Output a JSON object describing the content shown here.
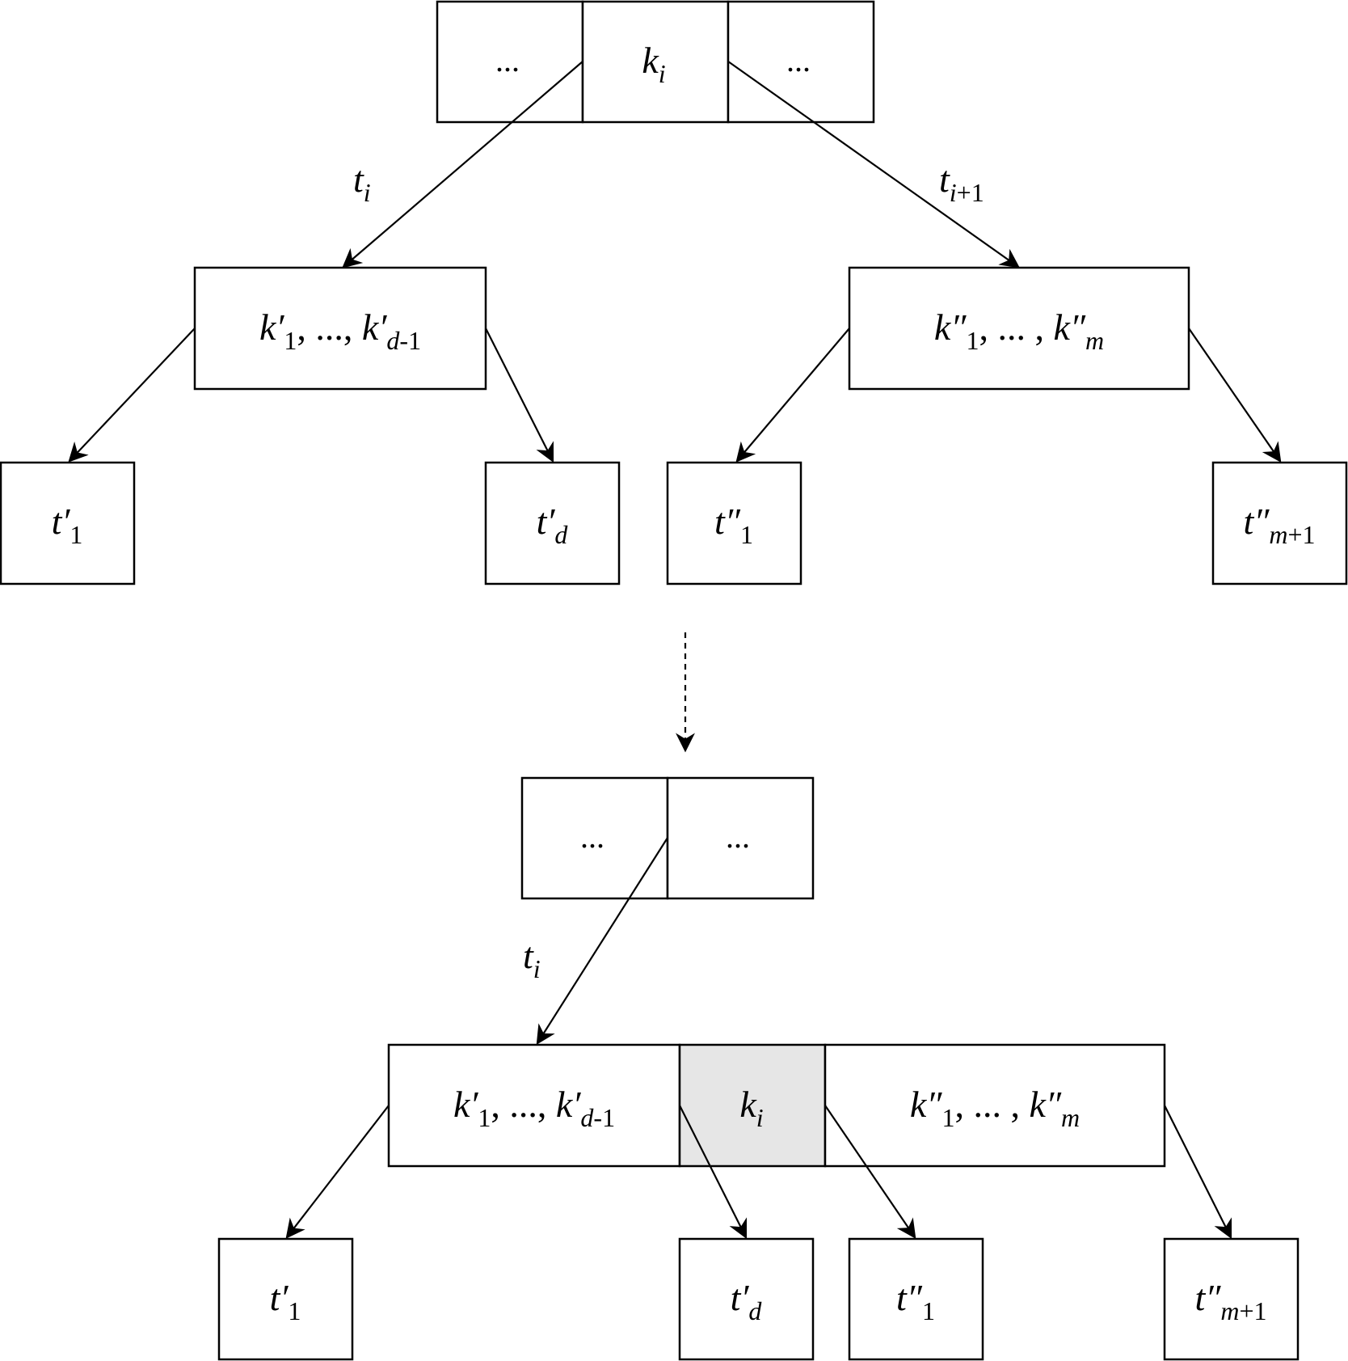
{
  "top": {
    "root": [
      "...",
      "k_i",
      "..."
    ],
    "left_node": "k'1, ..., k'd-1",
    "right_node": "k''1, ... , k''m",
    "leaves": [
      "t'1",
      "t'd",
      "t''1",
      "t''m+1"
    ],
    "edge_left": "t_i",
    "edge_right": "t_i+1"
  },
  "bottom": {
    "root": [
      "...",
      "..."
    ],
    "merged_node": [
      "k'1, ..., k'd-1",
      "k_i",
      "k''1, ... , k''m"
    ],
    "highlight_color": "#e6e6e6",
    "leaves": [
      "t'1",
      "t'd",
      "t''1",
      "t''m+1"
    ],
    "edge_left": "t_i"
  }
}
